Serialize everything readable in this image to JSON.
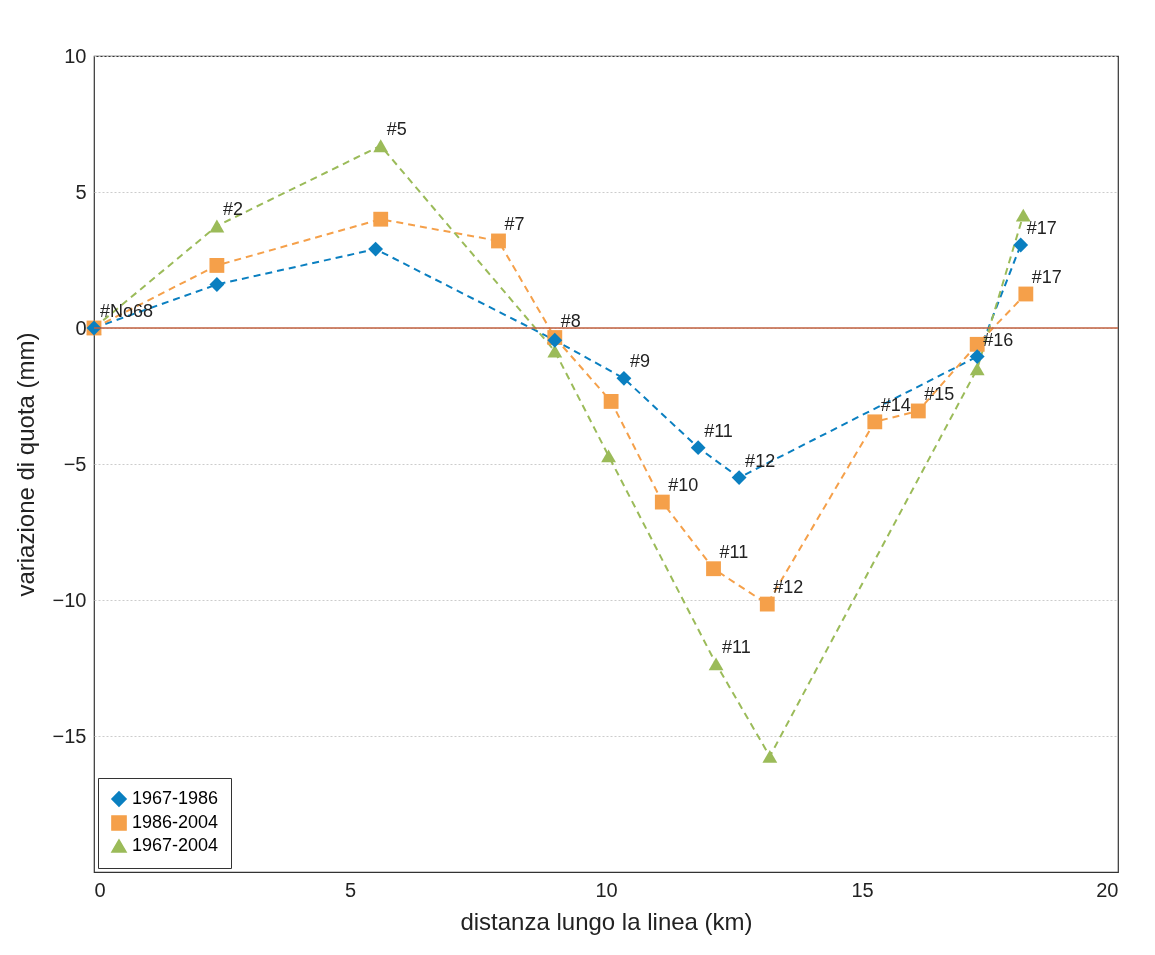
{
  "chart_data": {
    "type": "line",
    "xlabel": "distanza lungo la linea (km)",
    "ylabel": "variazione di quota (mm)",
    "xlim": [
      0,
      20
    ],
    "xticks": [
      0,
      5,
      10,
      15,
      20
    ],
    "ylim": [
      -20,
      10
    ],
    "yticks": [
      -15,
      -10,
      -5,
      0,
      5,
      10
    ],
    "grid": "y",
    "legend": "bottom left",
    "line_style": "dashed",
    "series": [
      {
        "name": "1967-1986",
        "color": "#0a7fc0",
        "marker": "diamond",
        "x": [
          0,
          2.4,
          5.5,
          9.0,
          10.35,
          11.8,
          12.6,
          17.25,
          18.1
        ],
        "values": [
          0,
          1.6,
          2.9,
          -0.45,
          -1.85,
          -4.4,
          -5.5,
          -1.05,
          3.05
        ]
      },
      {
        "name": "1986-2004",
        "color": "#f5a04a",
        "marker": "square",
        "x": [
          0,
          2.4,
          5.6,
          7.9,
          9.0,
          10.1,
          11.1,
          12.1,
          13.15,
          15.25,
          16.1,
          17.25,
          18.2
        ],
        "values": [
          0,
          2.3,
          4.0,
          3.2,
          -0.35,
          -2.7,
          -6.4,
          -8.85,
          -10.15,
          -3.45,
          -3.05,
          -0.6,
          1.25
        ]
      },
      {
        "name": "1967-2004",
        "color": "#9bbb59",
        "marker": "triangle",
        "x": [
          0,
          2.4,
          5.6,
          9.0,
          10.05,
          12.15,
          13.2,
          17.25,
          18.15
        ],
        "values": [
          0,
          3.75,
          6.7,
          -0.85,
          -4.7,
          -12.35,
          -15.75,
          -1.5,
          4.15
        ]
      }
    ],
    "ref_lines": [
      {
        "axis": "y",
        "value": 0,
        "color": "#c0603f"
      }
    ],
    "annotations": [
      {
        "text": "#No68",
        "x": 0,
        "y": 0
      },
      {
        "text": "#2",
        "x": 2.4,
        "y": 3.75
      },
      {
        "text": "#5",
        "x": 5.6,
        "y": 6.7
      },
      {
        "text": "#7",
        "x": 7.9,
        "y": 3.2
      },
      {
        "text": "#8",
        "x": 9.0,
        "y": -0.35
      },
      {
        "text": "#9",
        "x": 10.35,
        "y": -1.85
      },
      {
        "text": "#11",
        "x": 11.8,
        "y": -4.4
      },
      {
        "text": "#12",
        "x": 12.6,
        "y": -5.5
      },
      {
        "text": "#10",
        "x": 11.1,
        "y": -6.4
      },
      {
        "text": "#11",
        "x": 12.1,
        "y": -8.85
      },
      {
        "text": "#12",
        "x": 13.15,
        "y": -10.15
      },
      {
        "text": "#11",
        "x": 12.15,
        "y": -12.35
      },
      {
        "text": "#14",
        "x": 15.25,
        "y": -3.45
      },
      {
        "text": "#15",
        "x": 16.1,
        "y": -3.05
      },
      {
        "text": "#16",
        "x": 17.25,
        "y": -1.05
      },
      {
        "text": "#17",
        "x": 18.1,
        "y": 3.05
      },
      {
        "text": "#17",
        "x": 18.2,
        "y": 1.25
      }
    ]
  }
}
